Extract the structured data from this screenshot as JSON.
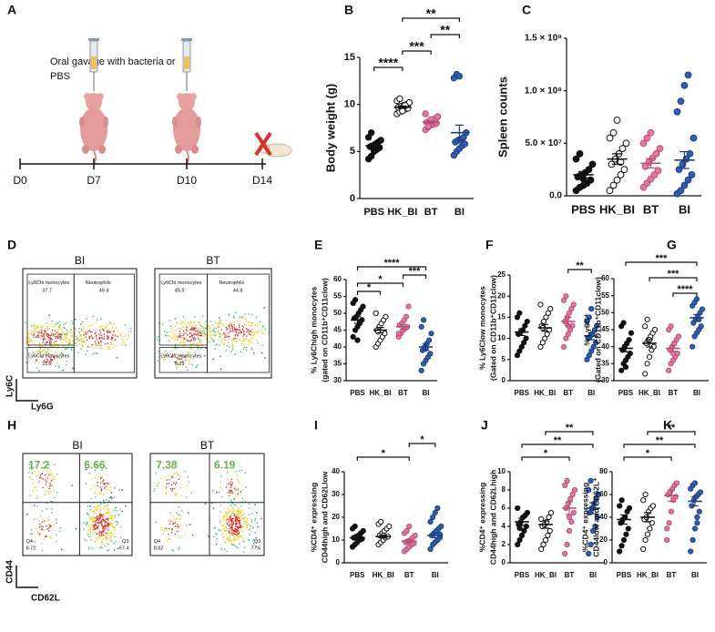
{
  "panel_labels": [
    "A",
    "B",
    "C",
    "D",
    "E",
    "F",
    "G",
    "H",
    "I",
    "J",
    "K"
  ],
  "timeline": {
    "note": [
      "Oral gavage with bacteria or",
      "PBS"
    ],
    "days": [
      "D0",
      "D7",
      "D10",
      "D14"
    ]
  },
  "flow_plots": [
    {
      "x_label": "Ly6G",
      "y_label": "Ly6C",
      "plots": [
        {
          "title": "BI",
          "gates": [
            {
              "name": "Ly6Chi monocytes",
              "value": 37.7
            },
            {
              "name": "Neutrophils",
              "value": 49.4
            },
            {
              "name": "Ly6Clo monocytes",
              "value": 12.2
            }
          ]
        },
        {
          "title": "BT",
          "gates": [
            {
              "name": "Ly6Chi monocytes",
              "value": 45.5
            },
            {
              "name": "Neutrophils",
              "value": 44.8
            },
            {
              "name": "Ly6Clo monocytes",
              "value": 9.29
            }
          ]
        }
      ]
    },
    {
      "x_label": "CD62L",
      "y_label": "CD44",
      "plots": [
        {
          "title": "BI",
          "highlights": [
            17.2,
            6.66
          ],
          "quadrants": [
            {
              "name": "Q4",
              "value": 8.72
            },
            {
              "name": "Q3",
              "value": 67.4
            }
          ]
        },
        {
          "title": "BT",
          "highlights": [
            7.38,
            6.19
          ],
          "quadrants": [
            {
              "name": "Q4",
              "value": 8.62
            },
            {
              "name": "Q3",
              "value": 77.6
            }
          ]
        }
      ]
    }
  ],
  "chart_data": [
    {
      "type": "dotplot",
      "y_label": [
        "Body weight (g)"
      ],
      "categories": [
        "PBS",
        "HK_BI",
        "BT",
        "BI"
      ],
      "marker_fill": [
        "#111111",
        "#ffffff",
        "#e07aa0",
        "#2f5fb0"
      ],
      "marker_edge": [
        "#111111",
        "#111111",
        "#b84e78",
        "#1d3f80"
      ],
      "values": [
        [
          4.2,
          4.5,
          5.0,
          5.2,
          5.4,
          5.5,
          5.6,
          5.8,
          6.0,
          6.2,
          6.5,
          7.0,
          5.3
        ],
        [
          9.0,
          9.2,
          9.4,
          9.5,
          9.6,
          9.7,
          9.8,
          9.9,
          10.0,
          10.2,
          10.4,
          10.6,
          9.3,
          9.9
        ],
        [
          7.3,
          7.6,
          7.8,
          7.9,
          8.0,
          8.1,
          8.2,
          8.3,
          8.5,
          8.7,
          9.0,
          7.7,
          8.4
        ],
        [
          4.6,
          5.0,
          5.3,
          5.6,
          5.8,
          6.0,
          6.2,
          6.3,
          6.5,
          7.0,
          12.8,
          13.2,
          13.0
        ]
      ],
      "means": [
        5.6,
        9.7,
        8.1,
        7.0
      ],
      "sems": [
        0.25,
        0.12,
        0.15,
        0.8
      ],
      "ylim": [
        0,
        15
      ],
      "yticks": [
        0,
        5,
        10,
        15
      ],
      "significance": [
        {
          "groups": [
            "PBS",
            "HK_BI"
          ],
          "label": "****"
        },
        {
          "groups": [
            "HK_BI",
            "BT"
          ],
          "label": "***"
        },
        {
          "groups": [
            "BT",
            "BI"
          ],
          "label": "**"
        },
        {
          "groups": [
            "HK_BI",
            "BI"
          ],
          "label": "**"
        }
      ]
    },
    {
      "type": "dotplot",
      "y_label": [
        "Spleen counts"
      ],
      "categories": [
        "PBS",
        "HK_BI",
        "BT",
        "BI"
      ],
      "marker_fill": [
        "#111111",
        "#ffffff",
        "#e07aa0",
        "#2f5fb0"
      ],
      "marker_edge": [
        "#111111",
        "#111111",
        "#b84e78",
        "#1d3f80"
      ],
      "values": [
        [
          5000000.0,
          8000000.0,
          10000000.0,
          12000000.0,
          15000000.0,
          18000000.0,
          20000000.0,
          22000000.0,
          25000000.0,
          30000000.0,
          35000000.0,
          40000000.0,
          16000000.0
        ],
        [
          5000000.0,
          10000000.0,
          15000000.0,
          20000000.0,
          25000000.0,
          30000000.0,
          35000000.0,
          40000000.0,
          45000000.0,
          50000000.0,
          55000000.0,
          60000000.0,
          72000000.0,
          32000000.0
        ],
        [
          8000000.0,
          12000000.0,
          16000000.0,
          20000000.0,
          24000000.0,
          28000000.0,
          32000000.0,
          36000000.0,
          40000000.0,
          45000000.0,
          50000000.0,
          55000000.0,
          60000000.0
        ],
        [
          2000000.0,
          5000000.0,
          10000000.0,
          15000000.0,
          20000000.0,
          25000000.0,
          30000000.0,
          35000000.0,
          40000000.0,
          55000000.0,
          80000000.0,
          90000000.0,
          105000000.0,
          115000000.0
        ]
      ],
      "means": [
        20000000.0,
        35000000.0,
        31000000.0,
        34000000.0
      ],
      "sems": [
        3000000.0,
        5000000.0,
        4500000.0,
        8000000.0
      ],
      "ylim": [
        0,
        150000000.0
      ],
      "yticks": [
        {
          "value": 0,
          "label": "0.0"
        },
        {
          "value": 50000000.0,
          "label": "5.0 × 10⁷"
        },
        {
          "value": 100000000.0,
          "label": "1.0 × 10⁸"
        },
        {
          "value": 150000000.0,
          "label": "1.5 × 10⁸"
        }
      ],
      "significance": []
    },
    {
      "type": "dotplot",
      "y_label": [
        "% Ly6Chigh monocytes",
        "(gated on CD11b⁺CD11clow)"
      ],
      "categories": [
        "PBS",
        "HK_BI",
        "BT",
        "BI"
      ],
      "marker_fill": [
        "#111111",
        "#ffffff",
        "#e07aa0",
        "#2f5fb0"
      ],
      "marker_edge": [
        "#111111",
        "#111111",
        "#b84e78",
        "#1d3f80"
      ],
      "values": [
        [
          43,
          45,
          46,
          47,
          48,
          48.5,
          49,
          50,
          51,
          52,
          53,
          54,
          42
        ],
        [
          40,
          41,
          42,
          43,
          44,
          45,
          46,
          47,
          48,
          49,
          50,
          44.5
        ],
        [
          43,
          44,
          45,
          45.5,
          46,
          46.5,
          47,
          48,
          49,
          52,
          44
        ],
        [
          33,
          35,
          36,
          37,
          38,
          39,
          40,
          41,
          42,
          44,
          46,
          48,
          39.5
        ]
      ],
      "means": [
        48,
        45,
        46,
        40
      ],
      "sems": [
        1,
        0.8,
        0.7,
        1
      ],
      "ylim": [
        30,
        60
      ],
      "yticks": [
        30,
        35,
        40,
        45,
        50,
        55,
        60
      ],
      "significance": [
        {
          "groups": [
            "PBS",
            "HK_BI"
          ],
          "label": "*"
        },
        {
          "groups": [
            "PBS",
            "BT"
          ],
          "label": "*"
        },
        {
          "groups": [
            "BT",
            "BI"
          ],
          "label": "***"
        },
        {
          "groups": [
            "PBS",
            "BI"
          ],
          "label": "****"
        }
      ]
    },
    {
      "type": "dotplot",
      "y_label": [
        "% Ly6Clow monocytes",
        "(Gated on CD11b⁺CD11clow)"
      ],
      "categories": [
        "PBS",
        "HK_BI",
        "BT",
        "BI"
      ],
      "marker_fill": [
        "#111111",
        "#ffffff",
        "#e07aa0",
        "#2f5fb0"
      ],
      "marker_edge": [
        "#111111",
        "#111111",
        "#b84e78",
        "#1d3f80"
      ],
      "values": [
        [
          6,
          7,
          8,
          9,
          10,
          11,
          11.5,
          12,
          13,
          14,
          15,
          16
        ],
        [
          8,
          9,
          10,
          11,
          12,
          13,
          14,
          15,
          16,
          17,
          18,
          12.5
        ],
        [
          8,
          10,
          11,
          12,
          13,
          14,
          15,
          16,
          17,
          18,
          19,
          20,
          13
        ],
        [
          5,
          6,
          7,
          8,
          9,
          10,
          10.5,
          11,
          12,
          13,
          14,
          15,
          17
        ]
      ],
      "means": [
        11.5,
        12.5,
        14,
        10.5
      ],
      "sems": [
        0.8,
        0.8,
        1.0,
        0.8
      ],
      "ylim": [
        0,
        25
      ],
      "yticks": [
        0,
        5,
        10,
        15,
        20,
        25
      ],
      "significance": [
        {
          "groups": [
            "BT",
            "BI"
          ],
          "label": "**"
        }
      ]
    },
    {
      "type": "dotplot",
      "y_label": [
        "% Ly6G⁺",
        "(Gated on CD11b⁺CD11clow)"
      ],
      "categories": [
        "PBS",
        "HK_BI",
        "BT",
        "BI"
      ],
      "marker_fill": [
        "#111111",
        "#ffffff",
        "#e07aa0",
        "#2f5fb0"
      ],
      "marker_edge": [
        "#111111",
        "#111111",
        "#b84e78",
        "#1d3f80"
      ],
      "values": [
        [
          33,
          35,
          36,
          37,
          38,
          39,
          40,
          41,
          42,
          44,
          46,
          47,
          34
        ],
        [
          32,
          35,
          37,
          39,
          40,
          41,
          42,
          43,
          44,
          45,
          46,
          48,
          42
        ],
        [
          33,
          35,
          36,
          37,
          38,
          39,
          40,
          41,
          42,
          43,
          45,
          46,
          38
        ],
        [
          40,
          43,
          44,
          45,
          46,
          47,
          48,
          49,
          50,
          51,
          52,
          53,
          54,
          48
        ]
      ],
      "means": [
        39.5,
        41,
        39.5,
        48.5
      ],
      "sems": [
        1,
        1.1,
        0.9,
        0.9
      ],
      "ylim": [
        30,
        60
      ],
      "yticks": [
        30,
        35,
        40,
        45,
        50,
        55,
        60
      ],
      "significance": [
        {
          "groups": [
            "BT",
            "BI"
          ],
          "label": "****"
        },
        {
          "groups": [
            "HK_BI",
            "BI"
          ],
          "label": "***"
        },
        {
          "groups": [
            "PBS",
            "BI"
          ],
          "label": "***"
        }
      ]
    },
    {
      "type": "dotplot",
      "y_label": [
        "%CD4⁺ expressing",
        "CD44high and CD62Llow"
      ],
      "categories": [
        "PBS",
        "HK_BI",
        "BT",
        "BI"
      ],
      "marker_fill": [
        "#111111",
        "#ffffff",
        "#e07aa0",
        "#2f5fb0"
      ],
      "marker_edge": [
        "#111111",
        "#111111",
        "#b84e78",
        "#1d3f80"
      ],
      "values": [
        [
          7,
          8,
          9,
          10,
          10.5,
          11,
          11.5,
          12,
          13,
          14,
          15,
          16,
          10
        ],
        [
          8,
          9,
          10,
          11,
          11.5,
          12,
          13,
          14,
          15,
          16,
          17,
          18,
          12
        ],
        [
          5,
          6,
          7,
          8,
          8.5,
          9,
          9.5,
          10,
          11,
          12,
          13,
          14,
          16
        ],
        [
          6,
          8,
          9,
          10,
          11,
          12,
          13,
          14,
          15,
          16,
          18,
          20,
          22,
          24,
          12.5
        ]
      ],
      "means": [
        11,
        11.5,
        9.5,
        12
      ],
      "sems": [
        0.5,
        0.6,
        0.6,
        1.0
      ],
      "ylim": [
        0,
        40
      ],
      "yticks": [
        0,
        10,
        20,
        30,
        40
      ],
      "significance": [
        {
          "groups": [
            "PBS",
            "BT"
          ],
          "label": "*"
        },
        {
          "groups": [
            "BT",
            "BI"
          ],
          "label": "*"
        }
      ]
    },
    {
      "type": "dotplot",
      "y_label": [
        "%CD4⁺ expressing",
        "CD44high and CD62Lhigh"
      ],
      "categories": [
        "PBS",
        "HK_BI",
        "BT",
        "BI"
      ],
      "marker_fill": [
        "#111111",
        "#ffffff",
        "#e07aa0",
        "#2f5fb0"
      ],
      "marker_edge": [
        "#111111",
        "#111111",
        "#b84e78",
        "#1d3f80"
      ],
      "values": [
        [
          2,
          2.5,
          3,
          3.5,
          4,
          4.2,
          4.5,
          5,
          5.2,
          5.5,
          6,
          3.8
        ],
        [
          1.5,
          2,
          2.5,
          3,
          3.5,
          4,
          4.2,
          4.5,
          5,
          5.5,
          4.8
        ],
        [
          1,
          2,
          3.5,
          4.5,
          5.5,
          6,
          6.5,
          7,
          7.5,
          8,
          8.5,
          9,
          5
        ],
        [
          1,
          2,
          3.5,
          4,
          5,
          5.5,
          6,
          6.5,
          7,
          7.5,
          8,
          9,
          6
        ]
      ],
      "means": [
        4.5,
        4.2,
        6.0,
        6.0
      ],
      "sems": [
        0.4,
        0.4,
        0.7,
        0.6
      ],
      "ylim": [
        0,
        10
      ],
      "yticks": [
        0,
        2,
        4,
        6,
        8,
        10
      ],
      "significance": [
        {
          "groups": [
            "PBS",
            "BT"
          ],
          "label": "*"
        },
        {
          "groups": [
            "PBS",
            "BI"
          ],
          "label": "**"
        },
        {
          "groups": [
            "HK_BI",
            "BI"
          ],
          "label": "**"
        }
      ]
    },
    {
      "type": "dotplot",
      "y_label": [
        "%CD4⁺ expressing",
        "CD44low and CD62L⁺"
      ],
      "categories": [
        "PBS",
        "HK_BI",
        "BT",
        "BI"
      ],
      "marker_fill": [
        "#111111",
        "#ffffff",
        "#e07aa0",
        "#2f5fb0"
      ],
      "marker_edge": [
        "#111111",
        "#111111",
        "#b84e78",
        "#1d3f80"
      ],
      "values": [
        [
          10,
          15,
          20,
          25,
          30,
          35,
          38,
          40,
          45,
          48,
          50,
          55
        ],
        [
          12,
          20,
          25,
          30,
          35,
          38,
          40,
          45,
          48,
          50,
          55,
          60
        ],
        [
          20,
          35,
          45,
          55,
          58,
          60,
          62,
          65,
          68,
          70,
          30
        ],
        [
          10,
          20,
          30,
          40,
          45,
          50,
          55,
          58,
          60,
          62,
          65,
          68,
          70,
          35
        ]
      ],
      "means": [
        38,
        40,
        59,
        54
      ],
      "sems": [
        4,
        4,
        5,
        4
      ],
      "ylim": [
        0,
        80
      ],
      "yticks": [
        0,
        20,
        40,
        60,
        80
      ],
      "significance": [
        {
          "groups": [
            "PBS",
            "BT"
          ],
          "label": "*"
        },
        {
          "groups": [
            "PBS",
            "BI"
          ],
          "label": "**"
        },
        {
          "groups": [
            "HK_BI",
            "BI"
          ],
          "label": "**"
        }
      ]
    }
  ]
}
